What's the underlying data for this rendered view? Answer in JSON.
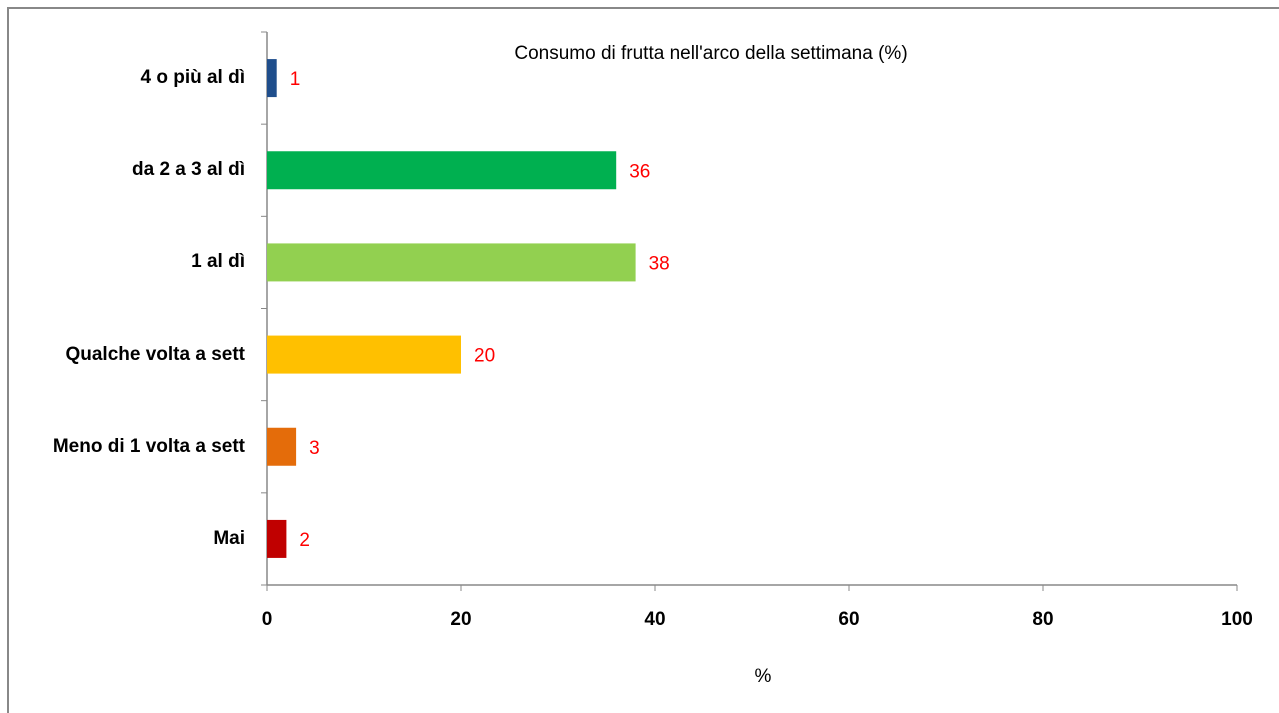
{
  "chart_data": {
    "type": "bar",
    "orientation": "horizontal",
    "title": "Consumo di frutta nell'arco della settimana (%)",
    "xlabel": "%",
    "categories": [
      "4 o più al dì",
      "da 2 a 3 al dì",
      "1 al dì",
      "Qualche volta a sett",
      "Meno di 1 volta a sett",
      "Mai"
    ],
    "values": [
      1,
      36,
      38,
      20,
      3,
      2
    ],
    "colors": [
      "#1f4e8c",
      "#00b050",
      "#92d050",
      "#ffc000",
      "#e46c0a",
      "#c00000"
    ],
    "value_label_color": "#ff0000",
    "xlim": [
      0,
      100
    ],
    "xticks": [
      0,
      20,
      40,
      60,
      80,
      100
    ],
    "grid": false
  }
}
